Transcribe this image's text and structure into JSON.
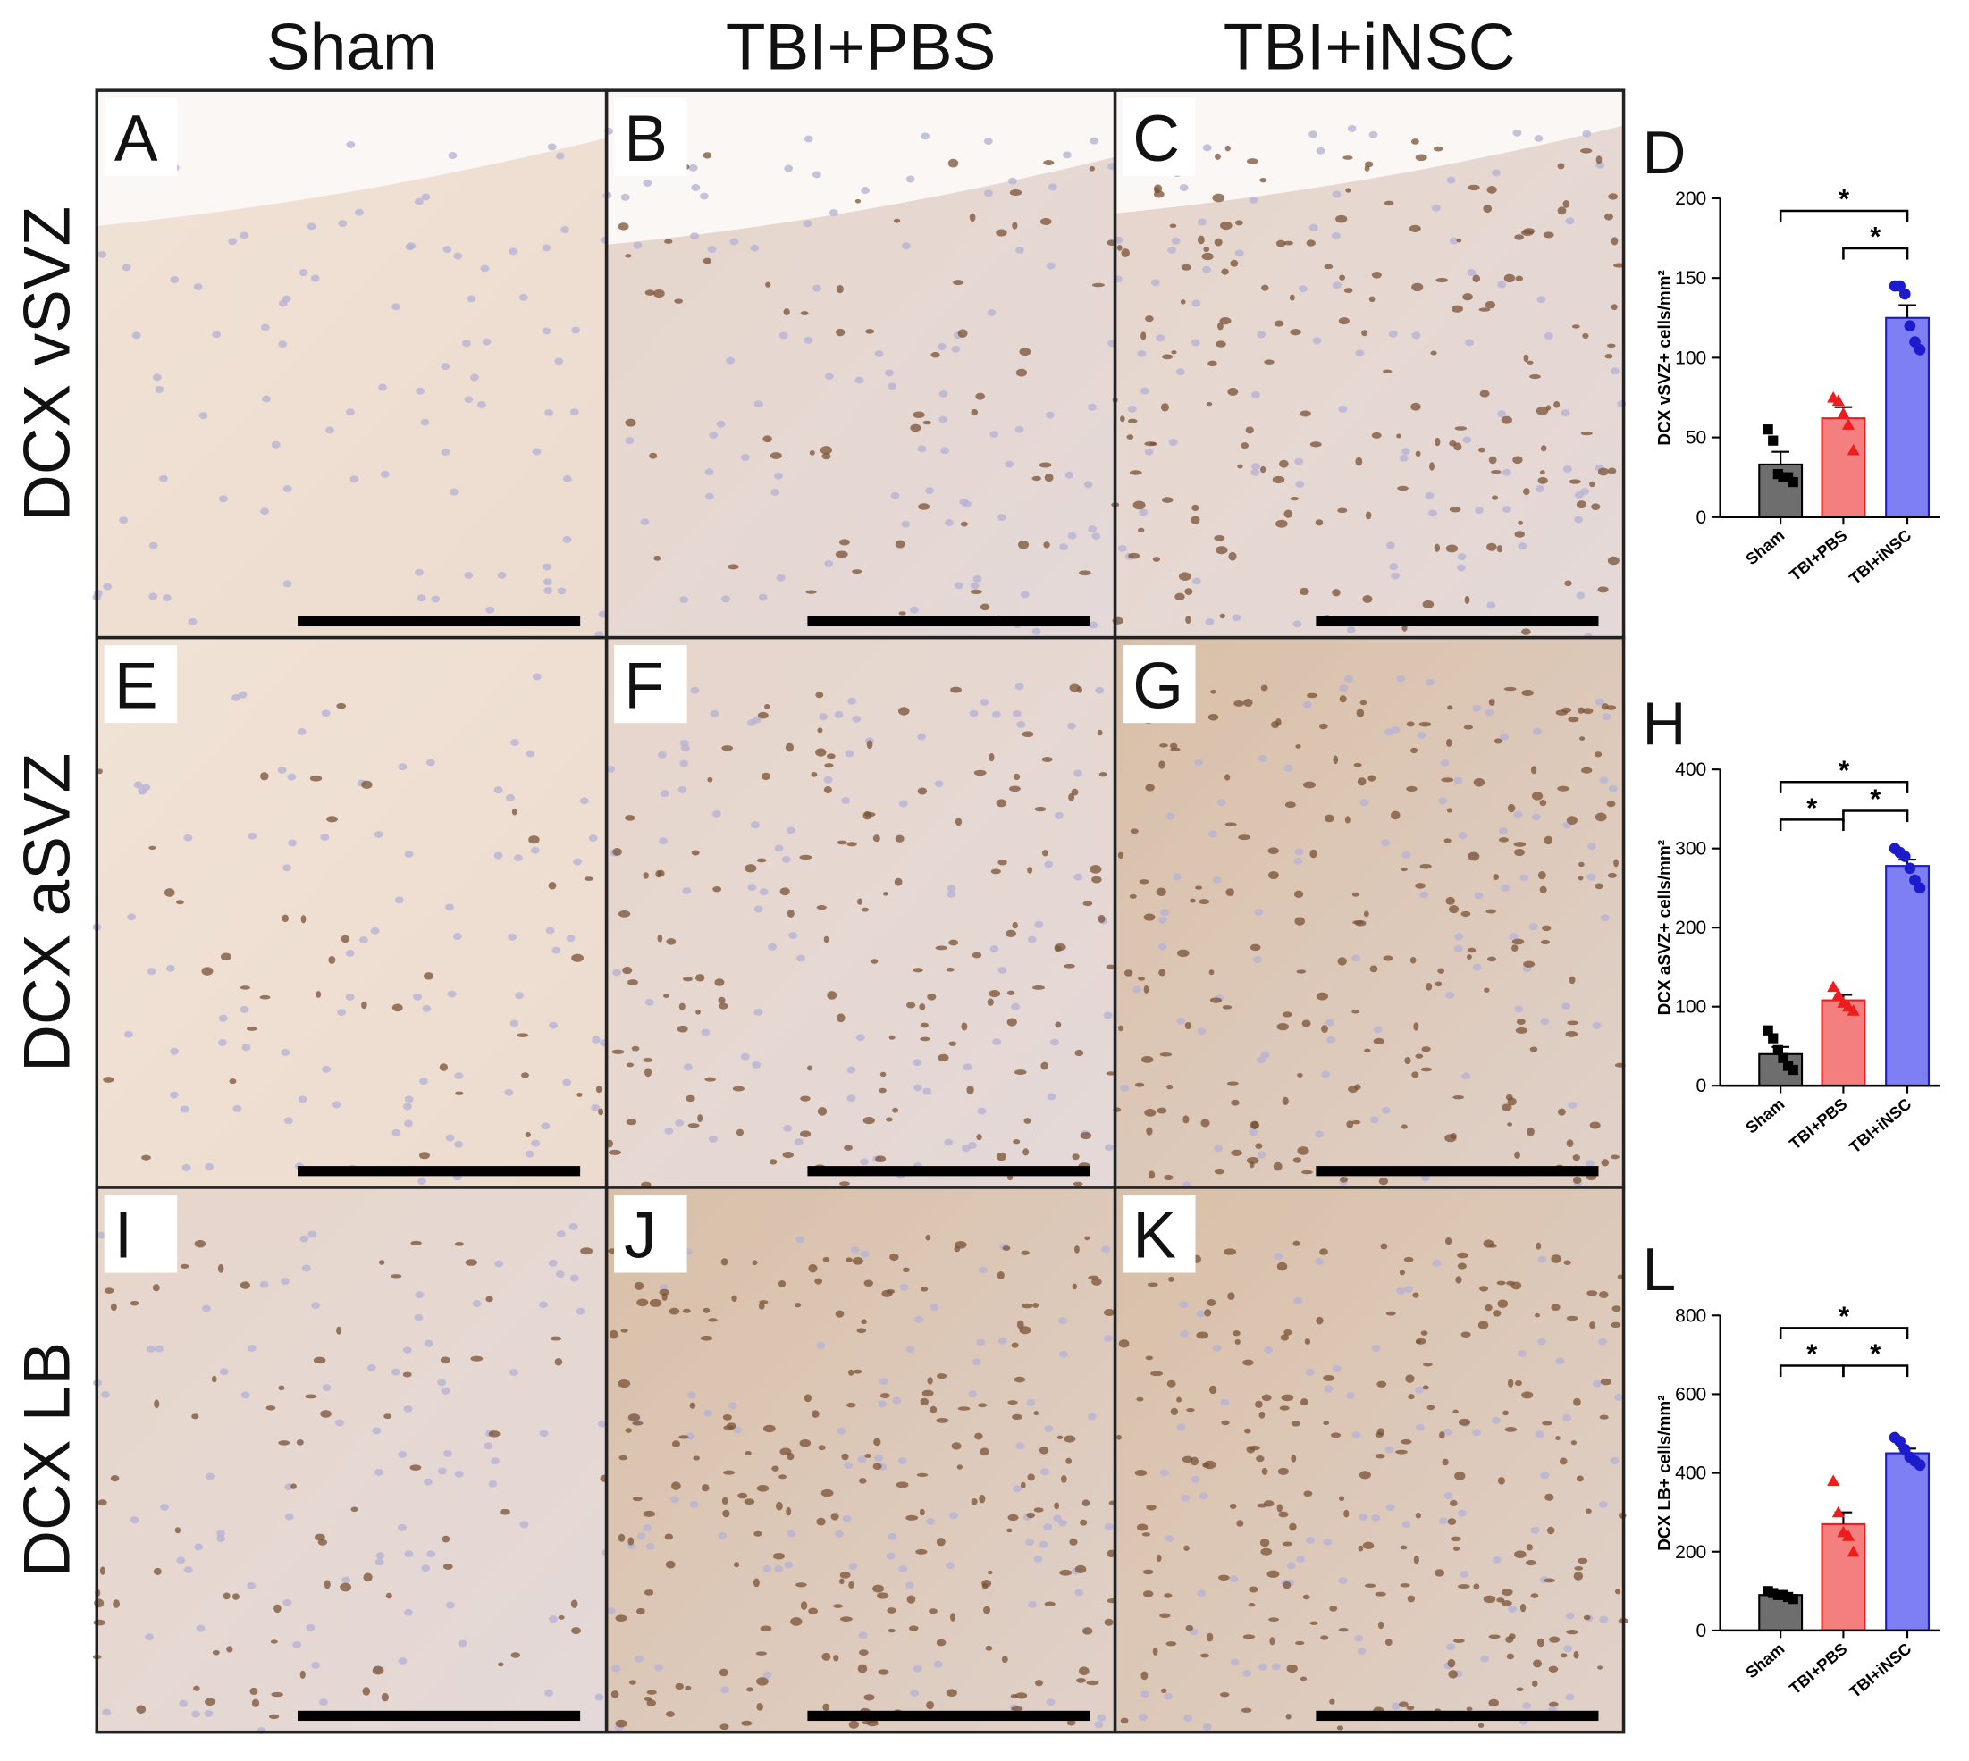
{
  "columns": [
    "Sham",
    "TBI+PBS",
    "TBI+iNSC"
  ],
  "rows": [
    "DCX vSVZ",
    "DCX aSVZ",
    "DCX LB"
  ],
  "panels": [
    [
      "A",
      "B",
      "C"
    ],
    [
      "E",
      "F",
      "G"
    ],
    [
      "I",
      "J",
      "K"
    ]
  ],
  "chart_data": [
    {
      "type": "bar",
      "label": "D",
      "y_label": "DCX vSVZ+ cells/mm²",
      "categories": [
        "Sham",
        "TBI+PBS",
        "TBI+iNSC"
      ],
      "values": [
        33,
        62,
        125
      ],
      "errors": [
        8,
        7,
        8
      ],
      "colors": [
        "#6e6e6e",
        "#f47f7f",
        "#7d7ff2"
      ],
      "point_colors": [
        "#000000",
        "#ee1c1c",
        "#1c1ccc"
      ],
      "markers": [
        "square",
        "triangle",
        "circle"
      ],
      "points": [
        [
          55,
          48,
          27,
          25,
          25,
          22
        ],
        [
          75,
          73,
          65,
          58,
          42
        ],
        [
          145,
          145,
          140,
          120,
          110,
          105
        ]
      ],
      "ylim": [
        0,
        200
      ],
      "yticks": [
        0,
        50,
        100,
        150,
        200
      ],
      "significance": [
        {
          "between": [
            0,
            2
          ],
          "label": "*"
        },
        {
          "between": [
            1,
            2
          ],
          "label": "*"
        }
      ]
    },
    {
      "type": "bar",
      "label": "H",
      "y_label": "DCX aSVZ+ cells/mm²",
      "categories": [
        "Sham",
        "TBI+PBS",
        "TBI+iNSC"
      ],
      "values": [
        40,
        108,
        278
      ],
      "errors": [
        9,
        7,
        8
      ],
      "colors": [
        "#6e6e6e",
        "#f47f7f",
        "#7d7ff2"
      ],
      "point_colors": [
        "#000000",
        "#ee1c1c",
        "#1c1ccc"
      ],
      "markers": [
        "square",
        "triangle",
        "circle"
      ],
      "points": [
        [
          70,
          60,
          45,
          35,
          25,
          20
        ],
        [
          125,
          115,
          105,
          100,
          95
        ],
        [
          300,
          295,
          290,
          275,
          260,
          250
        ]
      ],
      "ylim": [
        0,
        400
      ],
      "yticks": [
        0,
        100,
        200,
        300,
        400
      ],
      "significance": [
        {
          "between": [
            0,
            2
          ],
          "label": "*"
        },
        {
          "between": [
            1,
            2
          ],
          "label": "*"
        },
        {
          "between": [
            0,
            1
          ],
          "label": "*"
        }
      ]
    },
    {
      "type": "bar",
      "label": "L",
      "y_label": "DCX LB+ cells/mm²",
      "categories": [
        "Sham",
        "TBI+PBS",
        "TBI+iNSC"
      ],
      "values": [
        90,
        270,
        450
      ],
      "errors": [
        3,
        30,
        12
      ],
      "colors": [
        "#6e6e6e",
        "#f47f7f",
        "#7d7ff2"
      ],
      "point_colors": [
        "#000000",
        "#ee1c1c",
        "#1c1ccc"
      ],
      "markers": [
        "square",
        "triangle",
        "circle"
      ],
      "points": [
        [
          100,
          95,
          90,
          90,
          85,
          80
        ],
        [
          380,
          300,
          250,
          240,
          200
        ],
        [
          490,
          480,
          460,
          440,
          430,
          420
        ]
      ],
      "ylim": [
        0,
        800
      ],
      "yticks": [
        0,
        200,
        400,
        600,
        800
      ],
      "significance": [
        {
          "between": [
            0,
            2
          ],
          "label": "*"
        },
        {
          "between": [
            1,
            2
          ],
          "label": "*"
        },
        {
          "between": [
            0,
            1
          ],
          "label": "*"
        }
      ]
    }
  ]
}
